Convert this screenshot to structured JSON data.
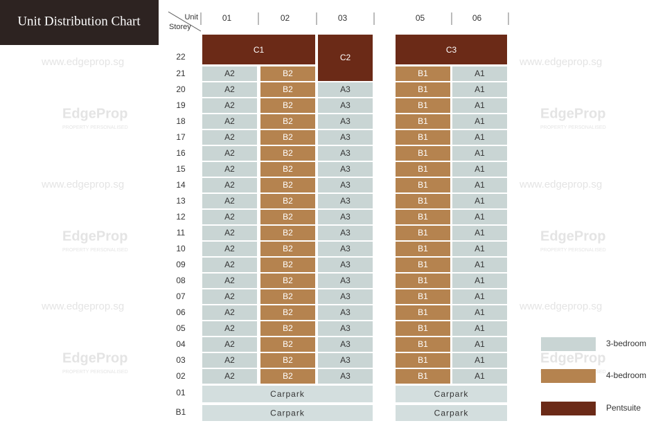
{
  "title": "Unit Distribution Chart",
  "header": {
    "unit": "Unit",
    "storey": "Storey"
  },
  "units": [
    "01",
    "02",
    "03",
    "05",
    "06"
  ],
  "storeys": [
    "22",
    "21",
    "20",
    "19",
    "18",
    "17",
    "16",
    "15",
    "14",
    "13",
    "12",
    "11",
    "10",
    "09",
    "08",
    "07",
    "06",
    "05",
    "04",
    "03",
    "02",
    "01",
    "B1"
  ],
  "penthouses": [
    "C1",
    "C2",
    "C3"
  ],
  "rows": [
    [
      "A2",
      "B2",
      null,
      "B1",
      "A1"
    ],
    [
      "A2",
      "B2",
      "A3",
      "B1",
      "A1"
    ],
    [
      "A2",
      "B2",
      "A3",
      "B1",
      "A1"
    ],
    [
      "A2",
      "B2",
      "A3",
      "B1",
      "A1"
    ],
    [
      "A2",
      "B2",
      "A3",
      "B1",
      "A1"
    ],
    [
      "A2",
      "B2",
      "A3",
      "B1",
      "A1"
    ],
    [
      "A2",
      "B2",
      "A3",
      "B1",
      "A1"
    ],
    [
      "A2",
      "B2",
      "A3",
      "B1",
      "A1"
    ],
    [
      "A2",
      "B2",
      "A3",
      "B1",
      "A1"
    ],
    [
      "A2",
      "B2",
      "A3",
      "B1",
      "A1"
    ],
    [
      "A2",
      "B2",
      "A3",
      "B1",
      "A1"
    ],
    [
      "A2",
      "B2",
      "A3",
      "B1",
      "A1"
    ],
    [
      "A2",
      "B2",
      "A3",
      "B1",
      "A1"
    ],
    [
      "A2",
      "B2",
      "A3",
      "B1",
      "A1"
    ],
    [
      "A2",
      "B2",
      "A3",
      "B1",
      "A1"
    ],
    [
      "A2",
      "B2",
      "A3",
      "B1",
      "A1"
    ],
    [
      "A2",
      "B2",
      "A3",
      "B1",
      "A1"
    ],
    [
      "A2",
      "B2",
      "A3",
      "B1",
      "A1"
    ],
    [
      "A2",
      "B2",
      "A3",
      "B1",
      "A1"
    ],
    [
      "A2",
      "B2",
      "A3",
      "B1",
      "A1"
    ]
  ],
  "carpark": "Carpark",
  "legend": [
    {
      "label": "3-bedroom",
      "color": "#c9d5d4"
    },
    {
      "label": "4-bedroom",
      "color": "#b5834f"
    },
    {
      "label": "Pentsuite",
      "color": "#6b2a17"
    }
  ],
  "watermark": {
    "url": "www.edgeprop.sg",
    "brand": "EdgeProp",
    "tagline": "PROPERTY PERSONALISED"
  }
}
